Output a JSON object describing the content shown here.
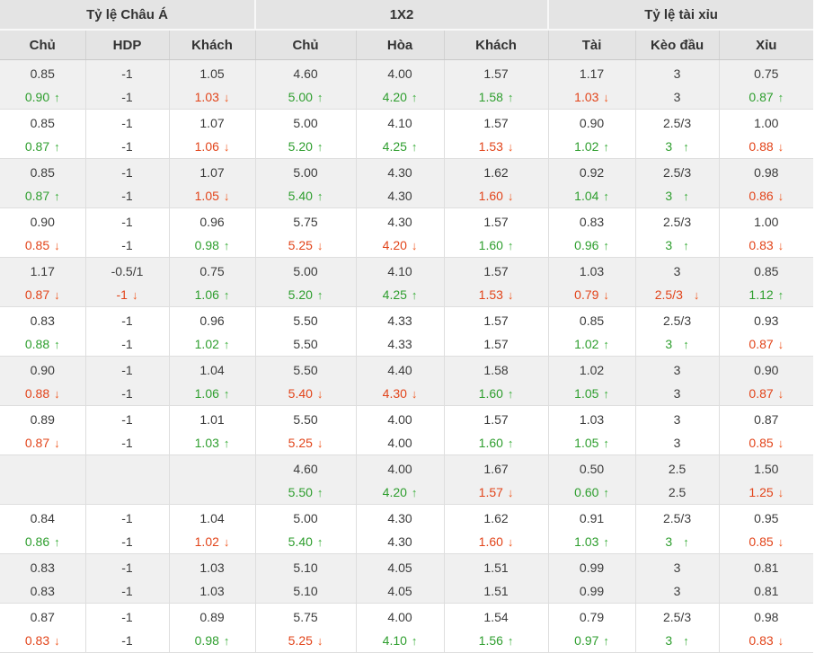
{
  "palette": {
    "header_bg": "#e4e4e4",
    "row_shaded_bg": "#f0f0f0",
    "row_plain_bg": "#ffffff",
    "text": "#3c3c3c",
    "up_green": "#2e9e2e",
    "down_red": "#e2441a",
    "border": "#dedede"
  },
  "table": {
    "group_headers": [
      "Tỷ lệ Châu Á",
      "1X2",
      "Tỷ lệ tài xỉu"
    ],
    "columns": [
      "Chủ",
      "HDP",
      "Khách",
      "Chủ",
      "Hòa",
      "Khách",
      "Tài",
      "Kèo đầu",
      "Xỉu"
    ],
    "cell_encoding": "value|color(k=black,g=green,r=red)|arrow(u=up,d=down)",
    "rows": [
      {
        "lines": [
          [
            "0.85",
            "-1",
            "1.05",
            "4.60",
            "4.00",
            "1.57",
            "1.17",
            "3",
            "0.75"
          ],
          [
            "0.90|g|u",
            "-1",
            "1.03|r|d",
            "5.00|g|u",
            "4.20|g|u",
            "1.58|g|u",
            "1.03|r|d",
            "3",
            "0.87|g|u"
          ]
        ]
      },
      {
        "lines": [
          [
            "0.85",
            "-1",
            "1.07",
            "5.00",
            "4.10",
            "1.57",
            "0.90",
            "2.5/3",
            "1.00"
          ],
          [
            "0.87|g|u",
            "-1",
            "1.06|r|d",
            "5.20|g|u",
            "4.25|g|u",
            "1.53|r|d",
            "1.02|g|u",
            "3|g|u",
            "0.88|r|d"
          ]
        ]
      },
      {
        "lines": [
          [
            "0.85",
            "-1",
            "1.07",
            "5.00",
            "4.30",
            "1.62",
            "0.92",
            "2.5/3",
            "0.98"
          ],
          [
            "0.87|g|u",
            "-1",
            "1.05|r|d",
            "5.40|g|u",
            "4.30",
            "1.60|r|d",
            "1.04|g|u",
            "3|g|u",
            "0.86|r|d"
          ]
        ]
      },
      {
        "lines": [
          [
            "0.90",
            "-1",
            "0.96",
            "5.75",
            "4.30",
            "1.57",
            "0.83",
            "2.5/3",
            "1.00"
          ],
          [
            "0.85|r|d",
            "-1",
            "0.98|g|u",
            "5.25|r|d",
            "4.20|r|d",
            "1.60|g|u",
            "0.96|g|u",
            "3|g|u",
            "0.83|r|d"
          ]
        ]
      },
      {
        "lines": [
          [
            "1.17",
            "-0.5/1",
            "0.75",
            "5.00",
            "4.10",
            "1.57",
            "1.03",
            "3",
            "0.85"
          ],
          [
            "0.87|r|d",
            "-1|r|d",
            "1.06|g|u",
            "5.20|g|u",
            "4.25|g|u",
            "1.53|r|d",
            "0.79|r|d",
            "2.5/3|r|d",
            "1.12|g|u"
          ]
        ]
      },
      {
        "lines": [
          [
            "0.83",
            "-1",
            "0.96",
            "5.50",
            "4.33",
            "1.57",
            "0.85",
            "2.5/3",
            "0.93"
          ],
          [
            "0.88|g|u",
            "-1",
            "1.02|g|u",
            "5.50",
            "4.33",
            "1.57",
            "1.02|g|u",
            "3|g|u",
            "0.87|r|d"
          ]
        ]
      },
      {
        "lines": [
          [
            "0.90",
            "-1",
            "1.04",
            "5.50",
            "4.40",
            "1.58",
            "1.02",
            "3",
            "0.90"
          ],
          [
            "0.88|r|d",
            "-1",
            "1.06|g|u",
            "5.40|r|d",
            "4.30|r|d",
            "1.60|g|u",
            "1.05|g|u",
            "3",
            "0.87|r|d"
          ]
        ]
      },
      {
        "lines": [
          [
            "0.89",
            "-1",
            "1.01",
            "5.50",
            "4.00",
            "1.57",
            "1.03",
            "3",
            "0.87"
          ],
          [
            "0.87|r|d",
            "-1",
            "1.03|g|u",
            "5.25|r|d",
            "4.00",
            "1.60|g|u",
            "1.05|g|u",
            "3",
            "0.85|r|d"
          ]
        ]
      },
      {
        "lines": [
          [
            "",
            "",
            "",
            "4.60",
            "4.00",
            "1.67",
            "0.50",
            "2.5",
            "1.50"
          ],
          [
            "",
            "",
            "",
            "5.50|g|u",
            "4.20|g|u",
            "1.57|r|d",
            "0.60|g|u",
            "2.5",
            "1.25|r|d"
          ]
        ]
      },
      {
        "lines": [
          [
            "0.84",
            "-1",
            "1.04",
            "5.00",
            "4.30",
            "1.62",
            "0.91",
            "2.5/3",
            "0.95"
          ],
          [
            "0.86|g|u",
            "-1",
            "1.02|r|d",
            "5.40|g|u",
            "4.30",
            "1.60|r|d",
            "1.03|g|u",
            "3|g|u",
            "0.85|r|d"
          ]
        ]
      },
      {
        "lines": [
          [
            "0.83",
            "-1",
            "1.03",
            "5.10",
            "4.05",
            "1.51",
            "0.99",
            "3",
            "0.81"
          ],
          [
            "0.83",
            "-1",
            "1.03",
            "5.10",
            "4.05",
            "1.51",
            "0.99",
            "3",
            "0.81"
          ]
        ]
      },
      {
        "lines": [
          [
            "0.87",
            "-1",
            "0.89",
            "5.75",
            "4.00",
            "1.54",
            "0.79",
            "2.5/3",
            "0.98"
          ],
          [
            "0.83|r|d",
            "-1",
            "0.98|g|u",
            "5.25|r|d",
            "4.10|g|u",
            "1.56|g|u",
            "0.97|g|u",
            "3|g|u",
            "0.83|r|d"
          ]
        ]
      }
    ]
  }
}
